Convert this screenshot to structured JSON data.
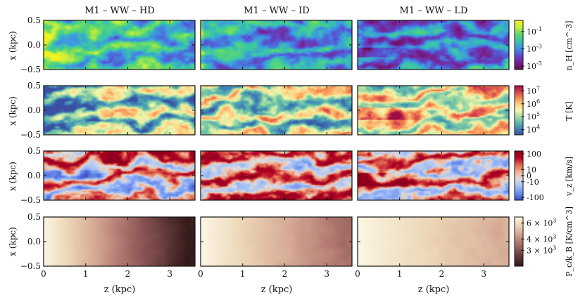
{
  "figure": {
    "columns": [
      "M1 – WW – HD",
      "M1 – WW – ID",
      "M1 – WW – LD"
    ],
    "ylabel": "x (kpc)",
    "xlabel": "z (kpc)"
  },
  "chart_data": {
    "type": "heatmap",
    "description_of_axes": {
      "xlim": [
        0,
        3.6
      ],
      "ylim": [
        -0.5,
        0.5
      ],
      "xticks": [
        "0",
        "1",
        "2",
        "3"
      ],
      "yticks": [
        "0.5",
        "0.0",
        "−0.5"
      ],
      "xticks_values": [
        0,
        1,
        2,
        3
      ],
      "yticks_values": [
        0.5,
        0.0,
        -0.5
      ]
    },
    "rows": [
      {
        "quantity": "n_H",
        "colorbar_label": "n_H [cm^-3]",
        "colorbar_ticks": [
          "10^-1",
          "10^-3",
          "10^-5"
        ],
        "colorbar_tick_values": [
          -1,
          -3,
          -5
        ],
        "range": [
          -5.4,
          0.3
        ],
        "colormap": [
          "#5b0c4e",
          "#7a1f8e",
          "#5a4fd0",
          "#3f93e6",
          "#37c3b0",
          "#5ad870",
          "#c6ee3c",
          "#f4f321"
        ]
      },
      {
        "quantity": "T",
        "colorbar_label": "T [K]",
        "colorbar_ticks": [
          "10^7",
          "10^6",
          "10^5",
          "10^4"
        ],
        "colorbar_tick_values": [
          7,
          6,
          5,
          4
        ],
        "range": [
          3.6,
          7.4
        ],
        "colormap": [
          "#3a4fa2",
          "#3f87b8",
          "#62bba9",
          "#a9dca3",
          "#f2f8ae",
          "#fdd383",
          "#f68b52",
          "#d3424f",
          "#9b0c42"
        ]
      },
      {
        "quantity": "v_z",
        "colorbar_label": "v_z [km/s]",
        "colorbar_ticks": [
          "100",
          "10",
          "0",
          "-10",
          "-100"
        ],
        "colorbar_tick_values": [
          100,
          10,
          0,
          -10,
          -100
        ],
        "range": [
          -150,
          150
        ],
        "colormap": [
          "#3b4cc0",
          "#6b8ef0",
          "#a6c1f7",
          "#dddcdc",
          "#f4b396",
          "#e2694f",
          "#b40426",
          "#8f001e"
        ]
      },
      {
        "quantity": "P_c/k_B",
        "colorbar_label": "P_c/k_B [K/cm^3]",
        "colorbar_ticks": [
          "6 × 10^3",
          "4 × 10^3",
          "3 × 10^3"
        ],
        "colorbar_tick_values": [
          6000,
          4000,
          3000
        ],
        "range": [
          2000,
          7000
        ],
        "colormap": [
          "#2e1616",
          "#5a3333",
          "#8a5555",
          "#b37b72",
          "#d6ab96",
          "#ecd4b4",
          "#fbf6e3"
        ]
      }
    ]
  }
}
